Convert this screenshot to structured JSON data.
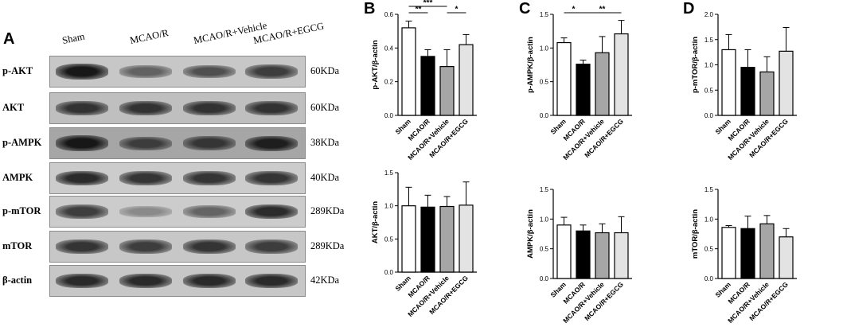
{
  "panels": {
    "A": "A",
    "B": "B",
    "C": "C",
    "D": "D"
  },
  "blot": {
    "lanes": [
      "Sham",
      "MCAO/R",
      "MCAO/R+Vehicle",
      "MCAO/R+EGCG"
    ],
    "rows": [
      {
        "label": "p-AKT",
        "kda": "60KDa",
        "bands": [
          0.95,
          0.55,
          0.65,
          0.75
        ],
        "background": 0.78
      },
      {
        "label": "AKT",
        "kda": "60KDa",
        "bands": [
          0.8,
          0.8,
          0.8,
          0.8
        ],
        "background": 0.75
      },
      {
        "label": "p-AMPK",
        "kda": "38KDa",
        "bands": [
          0.95,
          0.7,
          0.75,
          0.9
        ],
        "background": 0.65
      },
      {
        "label": "AMPK",
        "kda": "40KDa",
        "bands": [
          0.85,
          0.8,
          0.8,
          0.8
        ],
        "background": 0.8
      },
      {
        "label": "p-mTOR",
        "kda": "289KDa",
        "bands": [
          0.75,
          0.35,
          0.55,
          0.85
        ],
        "background": 0.8
      },
      {
        "label": "mTOR",
        "kda": "289KDa",
        "bands": [
          0.8,
          0.75,
          0.8,
          0.75
        ],
        "background": 0.78
      },
      {
        "label": "β-actin",
        "kda": "42KDa",
        "bands": [
          0.85,
          0.85,
          0.85,
          0.85
        ],
        "background": 0.78
      }
    ]
  },
  "chart_data": [
    {
      "panel": "B",
      "type": "bar",
      "ylabel": "p-AKT/β-actin",
      "categories": [
        "Sham",
        "MCAO/R",
        "MCAO/R+Vehicle",
        "MCAO/R+EGCG"
      ],
      "values": [
        0.52,
        0.35,
        0.29,
        0.42
      ],
      "errors": [
        0.04,
        0.04,
        0.1,
        0.06
      ],
      "ylim": [
        0,
        0.6
      ],
      "yticks": [
        "0.0",
        "0.2",
        "0.4",
        "0.6"
      ],
      "tick_values": [
        0,
        0.2,
        0.4,
        0.6
      ],
      "significance": [
        {
          "from": 0,
          "to": 1,
          "label": "**"
        },
        {
          "from": 0,
          "to": 2,
          "label": "***"
        },
        {
          "from": 2,
          "to": 3,
          "label": "*"
        }
      ]
    },
    {
      "panel": "B",
      "type": "bar",
      "ylabel": "AKT/β-actin",
      "categories": [
        "Sham",
        "MCAO/R",
        "MCAO/R+Vehicle",
        "MCAO/R+EGCG"
      ],
      "values": [
        1.0,
        0.98,
        0.99,
        1.01
      ],
      "errors": [
        0.28,
        0.18,
        0.15,
        0.35
      ],
      "ylim": [
        0,
        1.5
      ],
      "yticks": [
        "0.0",
        "0.5",
        "1.0",
        "1.5"
      ],
      "tick_values": [
        0,
        0.5,
        1.0,
        1.5
      ],
      "significance": []
    },
    {
      "panel": "C",
      "type": "bar",
      "ylabel": "p-AMPK/β-actin",
      "categories": [
        "Sham",
        "MCAO/R",
        "MCAO/R+Vehicle",
        "MCAO/R+EGCG"
      ],
      "values": [
        1.08,
        0.76,
        0.93,
        1.21
      ],
      "errors": [
        0.07,
        0.06,
        0.24,
        0.2
      ],
      "ylim": [
        0,
        1.5
      ],
      "yticks": [
        "0.0",
        "0.5",
        "1.0",
        "1.5"
      ],
      "tick_values": [
        0,
        0.5,
        1.0,
        1.5
      ],
      "significance": [
        {
          "from": 0,
          "to": 1,
          "label": "*"
        },
        {
          "from": 1,
          "to": 3,
          "label": "**"
        }
      ]
    },
    {
      "panel": "C",
      "type": "bar",
      "ylabel": "AMPK/β-actin",
      "categories": [
        "Sham",
        "MCAO/R",
        "MCAO/R+Vehicle",
        "MCAO/R+EGCG"
      ],
      "values": [
        0.9,
        0.8,
        0.77,
        0.77
      ],
      "errors": [
        0.13,
        0.1,
        0.15,
        0.27
      ],
      "ylim": [
        0,
        1.5
      ],
      "yticks": [
        "0.0",
        "0.5",
        "1.0",
        "1.5"
      ],
      "tick_values": [
        0,
        0.5,
        1.0,
        1.5
      ],
      "significance": []
    },
    {
      "panel": "D",
      "type": "bar",
      "ylabel": "p-mTOR/β-actin",
      "categories": [
        "Sham",
        "MCAO/R",
        "MCAO/R+Vehicle",
        "MCAO/R+EGCG"
      ],
      "values": [
        1.3,
        0.95,
        0.86,
        1.27
      ],
      "errors": [
        0.3,
        0.35,
        0.3,
        0.47
      ],
      "ylim": [
        0,
        2.0
      ],
      "yticks": [
        "0.0",
        "0.5",
        "1.0",
        "1.5",
        "2.0"
      ],
      "tick_values": [
        0,
        0.5,
        1.0,
        1.5,
        2.0
      ],
      "significance": []
    },
    {
      "panel": "D",
      "type": "bar",
      "ylabel": "mTOR/β-actin",
      "categories": [
        "Sham",
        "MCAO/R",
        "MCAO/R+Vehicle",
        "MCAO/R+EGCG"
      ],
      "values": [
        0.86,
        0.84,
        0.92,
        0.7
      ],
      "errors": [
        0.03,
        0.21,
        0.14,
        0.14
      ],
      "ylim": [
        0,
        1.5
      ],
      "yticks": [
        "0.0",
        "0.5",
        "1.0",
        "1.5"
      ],
      "tick_values": [
        0,
        0.5,
        1.0,
        1.5
      ],
      "significance": []
    }
  ],
  "bar_colors": [
    "#ffffff",
    "#000000",
    "#a6a6a6",
    "#e3e3e3"
  ]
}
